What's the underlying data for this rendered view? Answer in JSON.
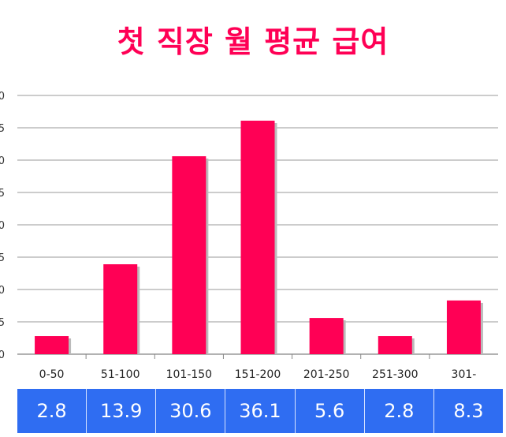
{
  "chart_data": {
    "type": "bar",
    "title": "첫 직장 월 평균 급여",
    "categories": [
      "0-50",
      "51-100",
      "101-150",
      "151-200",
      "201-250",
      "251-300",
      "301-"
    ],
    "values": [
      2.8,
      13.9,
      30.6,
      36.1,
      5.6,
      2.8,
      8.3
    ],
    "ylim": [
      0,
      40
    ],
    "y_ticks": [
      "0",
      "5",
      "0",
      "5",
      "0",
      "5",
      "0",
      "5",
      "0"
    ],
    "grid": true,
    "bar_color": "#ff0055",
    "table_color": "#2f6df2"
  }
}
